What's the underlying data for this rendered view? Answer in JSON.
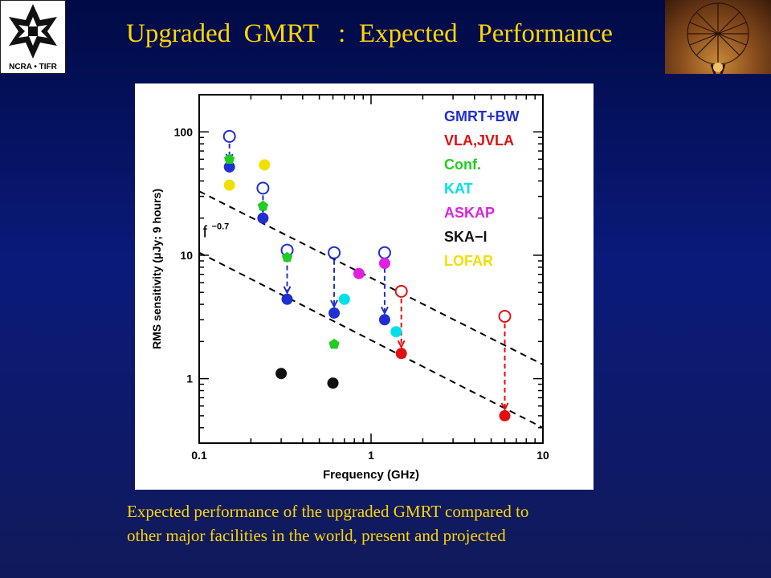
{
  "slide": {
    "title": "Upgraded  GMRT   :  Expected   Performance",
    "logo_left_caption": "NCRA • TIFR",
    "caption_lines": [
      "Expected performance of the upgraded GMRT compared to",
      "other major facilities in the world, present and projected"
    ],
    "colors": {
      "background": "#0a1a7a",
      "title": "#ffd600",
      "caption": "#ffd600"
    }
  },
  "chart_data": {
    "type": "scatter",
    "xlabel": "Frequency (GHz)",
    "ylabel": "RMS sensitivity (μJy; 9 hours)",
    "xscale": "log",
    "yscale": "log",
    "xlim": [
      0.1,
      10
    ],
    "ylim": [
      0.3,
      200
    ],
    "xticks": [
      0.1,
      1,
      10
    ],
    "xtick_labels": [
      "0.1",
      "1",
      "10"
    ],
    "yticks": [
      1,
      10,
      100
    ],
    "ytick_labels": [
      "1",
      "10",
      "100"
    ],
    "grid": false,
    "legend_position": "top-right",
    "legend": [
      {
        "label": "GMRT+BW",
        "color": "#1f2fd0"
      },
      {
        "label": "VLA,JVLA",
        "color": "#e01010"
      },
      {
        "label": "Conf.",
        "color": "#22cc22"
      },
      {
        "label": "KAT",
        "color": "#00e0e8"
      },
      {
        "label": "ASKAP",
        "color": "#e020e0"
      },
      {
        "label": "SKA−I",
        "color": "#111111"
      },
      {
        "label": "LOFAR",
        "color": "#f0e000"
      }
    ],
    "series": [
      {
        "name": "GMRT+BW",
        "color": "#1f2fd0",
        "marker": "filled",
        "x": [
          0.15,
          0.235,
          0.325,
          0.61,
          1.2
        ],
        "y": [
          52,
          20,
          4.4,
          3.4,
          3.0
        ]
      },
      {
        "name": "GMRT+BW",
        "color": "#1f2fd0",
        "marker": "open",
        "x": [
          0.15,
          0.235,
          0.325,
          0.61,
          1.2
        ],
        "y": [
          92,
          35,
          11,
          10.5,
          10.5
        ]
      },
      {
        "name": "VLA,JVLA",
        "color": "#e01010",
        "marker": "filled",
        "x": [
          1.5,
          6.0
        ],
        "y": [
          1.6,
          0.5
        ]
      },
      {
        "name": "VLA,JVLA",
        "color": "#e01010",
        "marker": "open",
        "x": [
          1.5,
          6.0
        ],
        "y": [
          5.1,
          3.2
        ]
      },
      {
        "name": "Conf.",
        "color": "#22cc22",
        "marker": "pentagon",
        "x": [
          0.15,
          0.235,
          0.325,
          0.61
        ],
        "y": [
          60,
          25,
          9.6,
          1.9
        ]
      },
      {
        "name": "KAT",
        "color": "#00e0e8",
        "marker": "filled",
        "x": [
          0.7,
          1.4
        ],
        "y": [
          4.4,
          2.4
        ]
      },
      {
        "name": "ASKAP",
        "color": "#e020e0",
        "marker": "filled",
        "x": [
          0.85,
          1.2
        ],
        "y": [
          7.1,
          8.6
        ]
      },
      {
        "name": "SKA−I",
        "color": "#111111",
        "marker": "filled",
        "x": [
          0.3,
          0.6
        ],
        "y": [
          1.1,
          0.92
        ]
      },
      {
        "name": "LOFAR",
        "color": "#f0e000",
        "marker": "filled",
        "x": [
          0.15,
          0.24
        ],
        "y": [
          37,
          54
        ]
      }
    ],
    "arrows": [
      {
        "color": "#1f2fd0",
        "x": 0.15,
        "from": 92,
        "to": 52
      },
      {
        "color": "#1f2fd0",
        "x": 0.235,
        "from": 35,
        "to": 20
      },
      {
        "color": "#1f2fd0",
        "x": 0.325,
        "from": 11,
        "to": 4.4
      },
      {
        "color": "#1f2fd0",
        "x": 0.61,
        "from": 10.5,
        "to": 3.4
      },
      {
        "color": "#1f2fd0",
        "x": 1.2,
        "from": 10.5,
        "to": 3.0
      },
      {
        "color": "#e01010",
        "x": 1.5,
        "from": 5.1,
        "to": 1.6
      },
      {
        "color": "#e01010",
        "x": 6.0,
        "from": 3.2,
        "to": 0.5
      }
    ],
    "reference_lines": [
      {
        "x": [
          0.1,
          10
        ],
        "y": [
          33,
          1.3
        ]
      },
      {
        "x": [
          0.1,
          10
        ],
        "y": [
          10.5,
          0.4
        ]
      }
    ],
    "annotation": {
      "text": "f",
      "superscript": "−0.7",
      "x": 0.105,
      "y": 14
    }
  }
}
